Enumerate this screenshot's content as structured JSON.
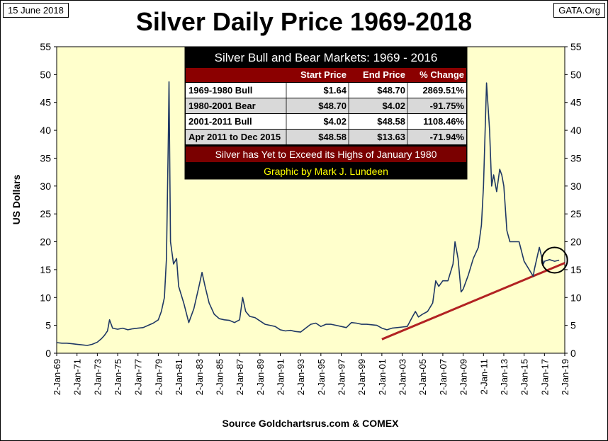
{
  "header": {
    "date": "15 June 2018",
    "source_tag": "GATA.Org",
    "title": "Silver Daily Price 1969-2018"
  },
  "colors": {
    "plot_bg": "#ffffcc",
    "price_line": "#1f3864",
    "trend_line": "#b22222",
    "table_bg": "#000000",
    "table_header": "#8b0000",
    "table_row_light": "#ffffff",
    "table_row_shaded": "#d9d9d9",
    "banner_bg": "#7a0000",
    "credit_text": "#ffff00"
  },
  "table": {
    "title": "Silver Bull and Bear Markets: 1969 - 2016",
    "columns": [
      "",
      "Start Price",
      "End Price",
      "% Change"
    ],
    "rows": [
      [
        "1969-1980 Bull",
        "$1.64",
        "$48.70",
        "2869.51%"
      ],
      [
        "1980-2001 Bear",
        "$48.70",
        "$4.02",
        "-91.75%"
      ],
      [
        "2001-2011 Bull",
        "$4.02",
        "$48.58",
        "1108.46%"
      ],
      [
        "Apr 2011 to Dec 2015",
        "$48.58",
        "$13.63",
        "-71.94%"
      ]
    ],
    "banner": "Silver has Yet to Exceed its Highs of January 1980",
    "credit": "Graphic by Mark J. Lundeen"
  },
  "chart_data": {
    "type": "line",
    "ylabel": "US Dollars",
    "xlabel": "Source Goldchartsrus.com & COMEX",
    "ylim": [
      0,
      55
    ],
    "yticks": [
      0,
      5,
      10,
      15,
      20,
      25,
      30,
      35,
      40,
      45,
      50,
      55
    ],
    "xlim": [
      1969.0,
      2019.0
    ],
    "xtick_labels": [
      "2-Jan-69",
      "2-Jan-71",
      "2-Jan-73",
      "2-Jan-75",
      "2-Jan-77",
      "2-Jan-79",
      "2-Jan-81",
      "2-Jan-83",
      "2-Jan-85",
      "2-Jan-87",
      "2-Jan-89",
      "2-Jan-91",
      "2-Jan-93",
      "2-Jan-95",
      "2-Jan-97",
      "2-Jan-99",
      "2-Jan-01",
      "2-Jan-03",
      "2-Jan-05",
      "2-Jan-07",
      "2-Jan-09",
      "2-Jan-11",
      "2-Jan-13",
      "2-Jan-15",
      "2-Jan-17",
      "2-Jan-19"
    ],
    "grid": false,
    "series": [
      {
        "x": [
          1969.0,
          1969.5,
          1970.0,
          1970.5,
          1971.0,
          1971.5,
          1972.0,
          1972.5,
          1973.0,
          1973.4,
          1973.7,
          1974.0,
          1974.2,
          1974.5,
          1975.0,
          1975.5,
          1976.0,
          1976.5,
          1977.0,
          1977.5,
          1978.0,
          1978.5,
          1979.0,
          1979.3,
          1979.6,
          1979.8,
          1980.0,
          1980.05,
          1980.2,
          1980.5,
          1980.8,
          1981.0,
          1981.5,
          1982.0,
          1982.5,
          1983.0,
          1983.3,
          1983.6,
          1984.0,
          1984.5,
          1985.0,
          1985.5,
          1986.0,
          1986.5,
          1987.0,
          1987.3,
          1987.6,
          1988.0,
          1988.5,
          1989.0,
          1989.5,
          1990.0,
          1990.5,
          1991.0,
          1991.5,
          1992.0,
          1992.5,
          1993.0,
          1993.5,
          1994.0,
          1994.5,
          1995.0,
          1995.5,
          1996.0,
          1996.5,
          1997.0,
          1997.5,
          1998.0,
          1998.5,
          1999.0,
          1999.5,
          2000.0,
          2000.5,
          2001.0,
          2001.5,
          2002.0,
          2002.5,
          2003.0,
          2003.5,
          2004.0,
          2004.3,
          2004.6,
          2005.0,
          2005.5,
          2006.0,
          2006.3,
          2006.6,
          2007.0,
          2007.5,
          2008.0,
          2008.2,
          2008.5,
          2008.8,
          2009.0,
          2009.5,
          2010.0,
          2010.5,
          2010.8,
          2011.0,
          2011.3,
          2011.6,
          2011.8,
          2012.0,
          2012.3,
          2012.6,
          2012.8,
          2013.0,
          2013.3,
          2013.6,
          2014.0,
          2014.5,
          2015.0,
          2015.5,
          2015.9,
          2016.0,
          2016.5,
          2016.9,
          2017.0,
          2017.5,
          2018.0,
          2018.45
        ],
        "y": [
          1.9,
          1.8,
          1.8,
          1.7,
          1.6,
          1.5,
          1.4,
          1.6,
          2.0,
          2.6,
          3.2,
          4.0,
          6.0,
          4.5,
          4.3,
          4.5,
          4.2,
          4.4,
          4.5,
          4.6,
          5.0,
          5.4,
          6.0,
          7.5,
          10.0,
          17.0,
          40.0,
          48.7,
          20.0,
          16.0,
          17.0,
          12.0,
          9.0,
          5.5,
          8.0,
          12.0,
          14.5,
          12.0,
          9.0,
          7.0,
          6.2,
          6.0,
          5.9,
          5.5,
          6.0,
          10.0,
          7.5,
          6.6,
          6.4,
          5.8,
          5.2,
          5.0,
          4.8,
          4.2,
          4.0,
          4.1,
          3.9,
          3.8,
          4.5,
          5.2,
          5.4,
          4.8,
          5.2,
          5.2,
          5.0,
          4.8,
          4.6,
          5.5,
          5.4,
          5.2,
          5.2,
          5.1,
          5.0,
          4.5,
          4.2,
          4.5,
          4.6,
          4.7,
          4.8,
          6.5,
          7.5,
          6.5,
          7.0,
          7.5,
          9.0,
          13.0,
          12.0,
          13.0,
          13.0,
          16.0,
          20.0,
          17.0,
          11.0,
          11.5,
          14.0,
          17.0,
          19.0,
          23.0,
          30.0,
          48.5,
          40.0,
          30.0,
          32.0,
          29.0,
          33.0,
          32.0,
          30.0,
          22.0,
          20.0,
          20.0,
          20.0,
          16.5,
          15.0,
          13.8,
          15.0,
          19.0,
          16.0,
          16.5,
          16.8,
          16.5,
          16.7
        ]
      }
    ],
    "trend_line": {
      "x": [
        2001.0,
        2019.0
      ],
      "y": [
        2.5,
        16.2
      ]
    },
    "highlight_circle": {
      "x": 2018.0,
      "y": 16.7
    }
  }
}
